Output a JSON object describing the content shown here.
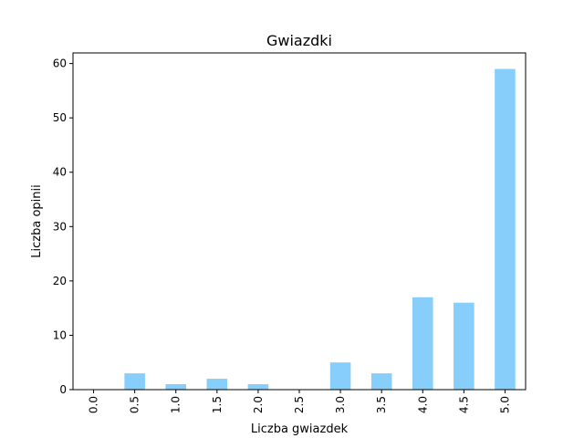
{
  "chart_data": {
    "type": "bar",
    "title": "Gwiazdki",
    "xlabel": "Liczba gwiazdek",
    "ylabel": "Liczba opinii",
    "categories": [
      "0.0",
      "0.5",
      "1.0",
      "1.5",
      "2.0",
      "2.5",
      "3.0",
      "3.5",
      "4.0",
      "4.5",
      "5.0"
    ],
    "values": [
      0,
      3,
      1,
      2,
      1,
      0,
      5,
      3,
      17,
      16,
      59
    ],
    "yticks": [
      0,
      10,
      20,
      30,
      40,
      50,
      60
    ],
    "ylim": [
      0,
      61.95
    ],
    "grid": false,
    "bar_color": "#87cefa",
    "axis_color": "#000000"
  }
}
